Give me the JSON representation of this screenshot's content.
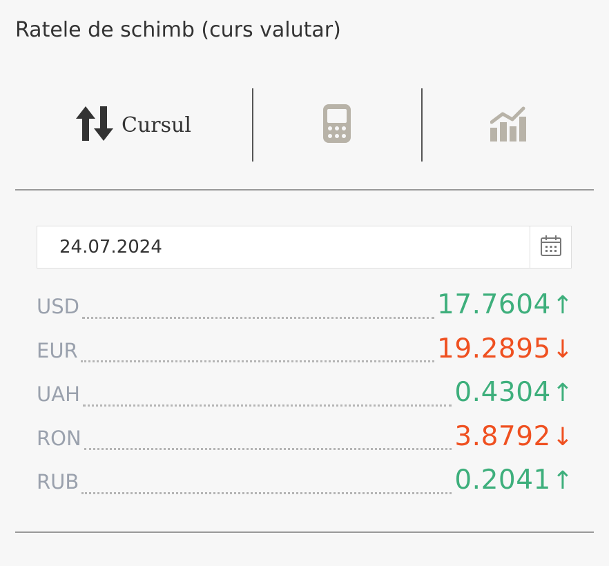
{
  "header": {
    "title": "Ratele de schimb (curs valutar)"
  },
  "tabs": [
    {
      "label": "Cursul",
      "icon": "up-down-arrows-icon"
    },
    {
      "label": "",
      "icon": "calculator-icon"
    },
    {
      "label": "",
      "icon": "bar-chart-icon"
    }
  ],
  "date": {
    "value": "24.07.2024",
    "icon": "calendar-icon"
  },
  "colors": {
    "up": "#3eaf7c",
    "down": "#ef5020",
    "code": "#9aa1ad"
  },
  "rates": [
    {
      "code": "USD",
      "value": "17.7604",
      "trend": "up",
      "arrow": "↑"
    },
    {
      "code": "EUR",
      "value": "19.2895",
      "trend": "down",
      "arrow": "↓"
    },
    {
      "code": "UAH",
      "value": "0.4304",
      "trend": "up",
      "arrow": "↑"
    },
    {
      "code": "RON",
      "value": "3.8792",
      "trend": "down",
      "arrow": "↓"
    },
    {
      "code": "RUB",
      "value": "0.2041",
      "trend": "up",
      "arrow": "↑"
    }
  ]
}
